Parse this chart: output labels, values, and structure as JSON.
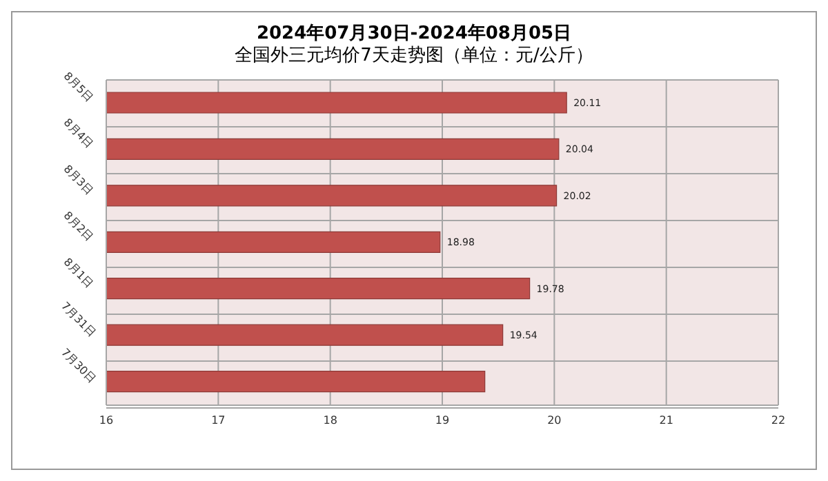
{
  "chart_data": {
    "type": "bar",
    "orientation": "horizontal",
    "title": "2024年07月30日-2024年08月05日",
    "subtitle": "全国外三元均价7天走势图（单位：元/公斤）",
    "categories": [
      "8月5日",
      "8月4日",
      "8月3日",
      "8月2日",
      "8月1日",
      "7月31日",
      "7月30日"
    ],
    "values": [
      20.11,
      20.04,
      20.02,
      18.98,
      19.78,
      19.54,
      19.38
    ],
    "value_labels": [
      "20.11",
      "20.04",
      "20.02",
      "18.98",
      "19.78",
      "19.54",
      null
    ],
    "color": "#c0504d",
    "xlim": [
      16,
      22
    ],
    "xticks": [
      16,
      17,
      18,
      19,
      20,
      21,
      22
    ],
    "grid": true
  }
}
